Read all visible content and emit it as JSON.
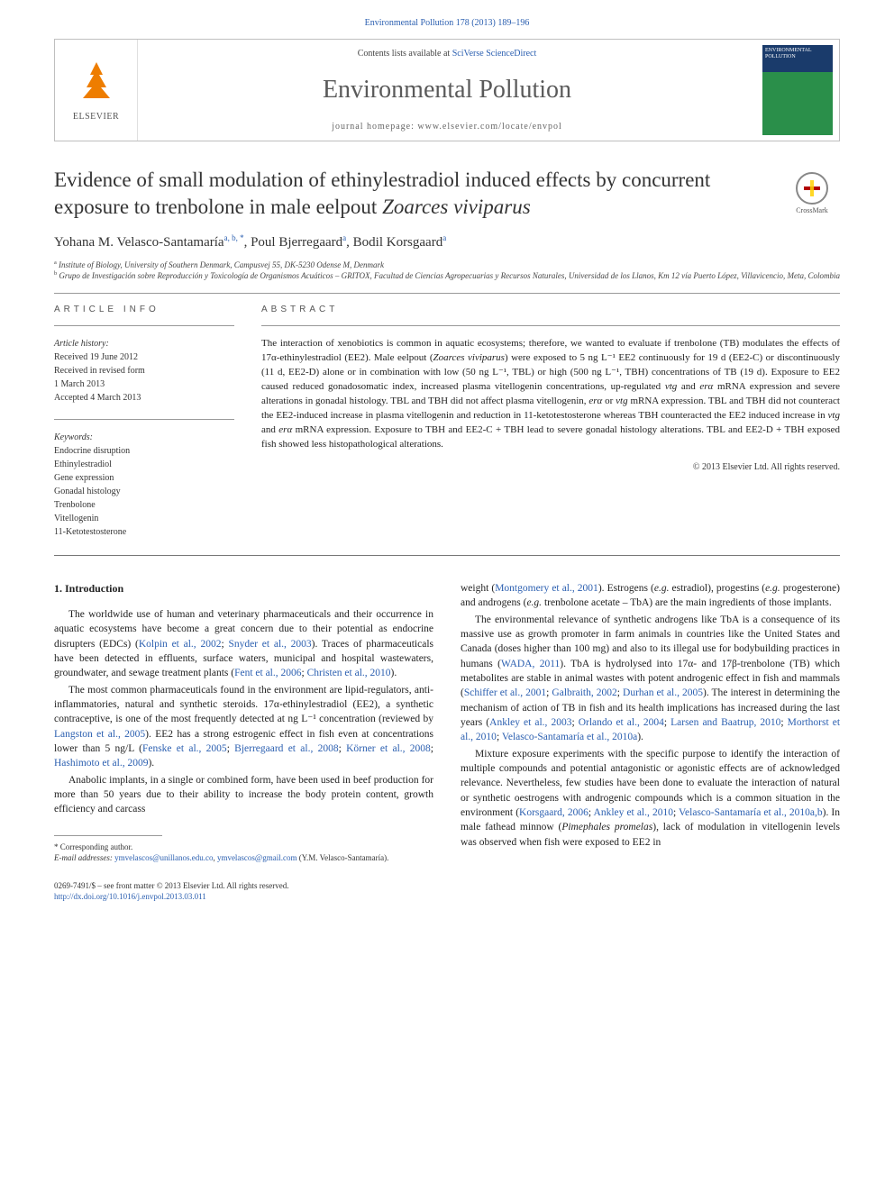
{
  "citation": "Environmental Pollution 178 (2013) 189–196",
  "header": {
    "contents_prefix": "Contents lists available at ",
    "contents_link": "SciVerse ScienceDirect",
    "journal": "Environmental Pollution",
    "homepage_prefix": "journal homepage: ",
    "homepage_url": "www.elsevier.com/locate/envpol",
    "publisher": "ELSEVIER",
    "cover_title": "ENVIRONMENTAL POLLUTION"
  },
  "crossmark": "CrossMark",
  "title_part1": "Evidence of small modulation of ethinylestradiol induced effects by concurrent exposure to trenbolone in male eelpout ",
  "title_species": "Zoarces viviparus",
  "authors": {
    "a1_name": "Yohana M. Velasco-Santamaría",
    "a1_aff": "a, b, ",
    "a1_corr": "*",
    "a2_name": "Poul Bjerregaard",
    "a2_aff": "a",
    "a3_name": "Bodil Korsgaard",
    "a3_aff": "a"
  },
  "affiliations": {
    "a": "Institute of Biology, University of Southern Denmark, Campusvej 55, DK-5230 Odense M, Denmark",
    "b": "Grupo de Investigación sobre Reproducción y Toxicología de Organismos Acuáticos – GRITOX, Facultad de Ciencias Agropecuarias y Recursos Naturales, Universidad de los Llanos, Km 12 vía Puerto López, Villavicencio, Meta, Colombia"
  },
  "article_info": {
    "label": "ARTICLE INFO",
    "history_label": "Article history:",
    "received": "Received 19 June 2012",
    "revised": "Received in revised form",
    "revised_date": "1 March 2013",
    "accepted": "Accepted 4 March 2013",
    "keywords_label": "Keywords:",
    "keywords": [
      "Endocrine disruption",
      "Ethinylestradiol",
      "Gene expression",
      "Gonadal histology",
      "Trenbolone",
      "Vitellogenin",
      "11-Ketotestosterone"
    ]
  },
  "abstract": {
    "label": "ABSTRACT",
    "text_parts": [
      "The interaction of xenobiotics is common in aquatic ecosystems; therefore, we wanted to evaluate if trenbolone (TB) modulates the effects of 17α-ethinylestradiol (EE2). Male eelpout (",
      "Zoarces viviparus",
      ") were exposed to 5 ng L⁻¹ EE2 continuously for 19 d (EE2-C) or discontinuously (11 d, EE2-D) alone or in combination with low (50 ng L⁻¹, TBL) or high (500 ng L⁻¹, TBH) concentrations of TB (19 d). Exposure to EE2 caused reduced gonadosomatic index, increased plasma vitellogenin concentrations, up-regulated ",
      "vtg",
      " and ",
      "erα",
      " mRNA expression and severe alterations in gonadal histology. TBL and TBH did not affect plasma vitellogenin, ",
      "erα",
      " or ",
      "vtg",
      " mRNA expression. TBL and TBH did not counteract the EE2-induced increase in plasma vitellogenin and reduction in 11-ketotestosterone whereas TBH counteracted the EE2 induced increase in ",
      "vtg",
      " and ",
      "erα",
      " mRNA expression. Exposure to TBH and EE2-C + TBH lead to severe gonadal histology alterations. TBL and EE2-D + TBH exposed fish showed less histopathological alterations."
    ],
    "copyright": "© 2013 Elsevier Ltd. All rights reserved."
  },
  "body": {
    "section_heading": "1. Introduction",
    "left_paragraphs": [
      {
        "runs": [
          {
            "t": "The worldwide use of human and veterinary pharmaceuticals and their occurrence in aquatic ecosystems have become a great concern due to their potential as endocrine disrupters (EDCs) ("
          },
          {
            "t": "Kolpin et al., 2002",
            "link": true
          },
          {
            "t": "; "
          },
          {
            "t": "Snyder et al., 2003",
            "link": true
          },
          {
            "t": "). Traces of pharmaceuticals have been detected in effluents, surface waters, municipal and hospital wastewaters, groundwater, and sewage treatment plants ("
          },
          {
            "t": "Fent et al., 2006",
            "link": true
          },
          {
            "t": "; "
          },
          {
            "t": "Christen et al., 2010",
            "link": true
          },
          {
            "t": ")."
          }
        ]
      },
      {
        "runs": [
          {
            "t": "The most common pharmaceuticals found in the environment are lipid-regulators, anti-inflammatories, natural and synthetic steroids. 17α-ethinylestradiol (EE2), a synthetic contraceptive, is one of the most frequently detected at ng L⁻¹ concentration (reviewed by "
          },
          {
            "t": "Langston et al., 2005",
            "link": true
          },
          {
            "t": "). EE2 has a strong estrogenic effect in fish even at concentrations lower than 5 ng/L ("
          },
          {
            "t": "Fenske et al., 2005",
            "link": true
          },
          {
            "t": "; "
          },
          {
            "t": "Bjerregaard et al., 2008",
            "link": true
          },
          {
            "t": "; "
          },
          {
            "t": "Körner et al., 2008",
            "link": true
          },
          {
            "t": "; "
          },
          {
            "t": "Hashimoto et al., 2009",
            "link": true
          },
          {
            "t": ")."
          }
        ]
      },
      {
        "runs": [
          {
            "t": "Anabolic implants, in a single or combined form, have been used in beef production for more than 50 years due to their ability to increase the body protein content, growth efficiency and carcass"
          }
        ]
      }
    ],
    "right_paragraphs": [
      {
        "runs": [
          {
            "t": "weight ("
          },
          {
            "t": "Montgomery et al., 2001",
            "link": true
          },
          {
            "t": "). Estrogens ("
          },
          {
            "t": "e.g.",
            "italic": true
          },
          {
            "t": " estradiol), progestins ("
          },
          {
            "t": "e.g.",
            "italic": true
          },
          {
            "t": " progesterone) and androgens ("
          },
          {
            "t": "e.g.",
            "italic": true
          },
          {
            "t": " trenbolone acetate – TbA) are the main ingredients of those implants."
          }
        ],
        "noindent": true
      },
      {
        "runs": [
          {
            "t": "The environmental relevance of synthetic androgens like TbA is a consequence of its massive use as growth promoter in farm animals in countries like the United States and Canada (doses higher than 100 mg) and also to its illegal use for bodybuilding practices in humans ("
          },
          {
            "t": "WADA, 2011",
            "link": true
          },
          {
            "t": "). TbA is hydrolysed into 17α- and 17β-trenbolone (TB) which metabolites are stable in animal wastes with potent androgenic effect in fish and mammals ("
          },
          {
            "t": "Schiffer et al., 2001",
            "link": true
          },
          {
            "t": "; "
          },
          {
            "t": "Galbraith, 2002",
            "link": true
          },
          {
            "t": "; "
          },
          {
            "t": "Durhan et al., 2005",
            "link": true
          },
          {
            "t": "). The interest in determining the mechanism of action of TB in fish and its health implications has increased during the last years ("
          },
          {
            "t": "Ankley et al., 2003",
            "link": true
          },
          {
            "t": "; "
          },
          {
            "t": "Orlando et al., 2004",
            "link": true
          },
          {
            "t": "; "
          },
          {
            "t": "Larsen and Baatrup, 2010",
            "link": true
          },
          {
            "t": "; "
          },
          {
            "t": "Morthorst et al., 2010",
            "link": true
          },
          {
            "t": "; "
          },
          {
            "t": "Velasco-Santamaría et al., 2010a",
            "link": true
          },
          {
            "t": ")."
          }
        ]
      },
      {
        "runs": [
          {
            "t": "Mixture exposure experiments with the specific purpose to identify the interaction of multiple compounds and potential antagonistic or agonistic effects are of acknowledged relevance. Nevertheless, few studies have been done to evaluate the interaction of natural or synthetic oestrogens with androgenic compounds which is a common situation in the environment ("
          },
          {
            "t": "Korsgaard, 2006",
            "link": true
          },
          {
            "t": "; "
          },
          {
            "t": "Ankley et al., 2010",
            "link": true
          },
          {
            "t": "; "
          },
          {
            "t": "Velasco-Santamaría et al., 2010a,b",
            "link": true
          },
          {
            "t": "). In male fathead minnow ("
          },
          {
            "t": "Pimephales promelas",
            "italic": true
          },
          {
            "t": "), lack of modulation in vitellogenin levels was observed when fish were exposed to EE2 in"
          }
        ]
      }
    ]
  },
  "footnotes": {
    "corr_label": "* Corresponding author.",
    "email_label": "E-mail addresses:",
    "email1": "ymvelascos@unillanos.edu.co",
    "email2": "ymvelascos@gmail.com",
    "email_name": "(Y.M. Velasco-Santamaría)."
  },
  "bottom": {
    "issn": "0269-7491/$ – see front matter © 2013 Elsevier Ltd. All rights reserved.",
    "doi": "http://dx.doi.org/10.1016/j.envpol.2013.03.011"
  }
}
